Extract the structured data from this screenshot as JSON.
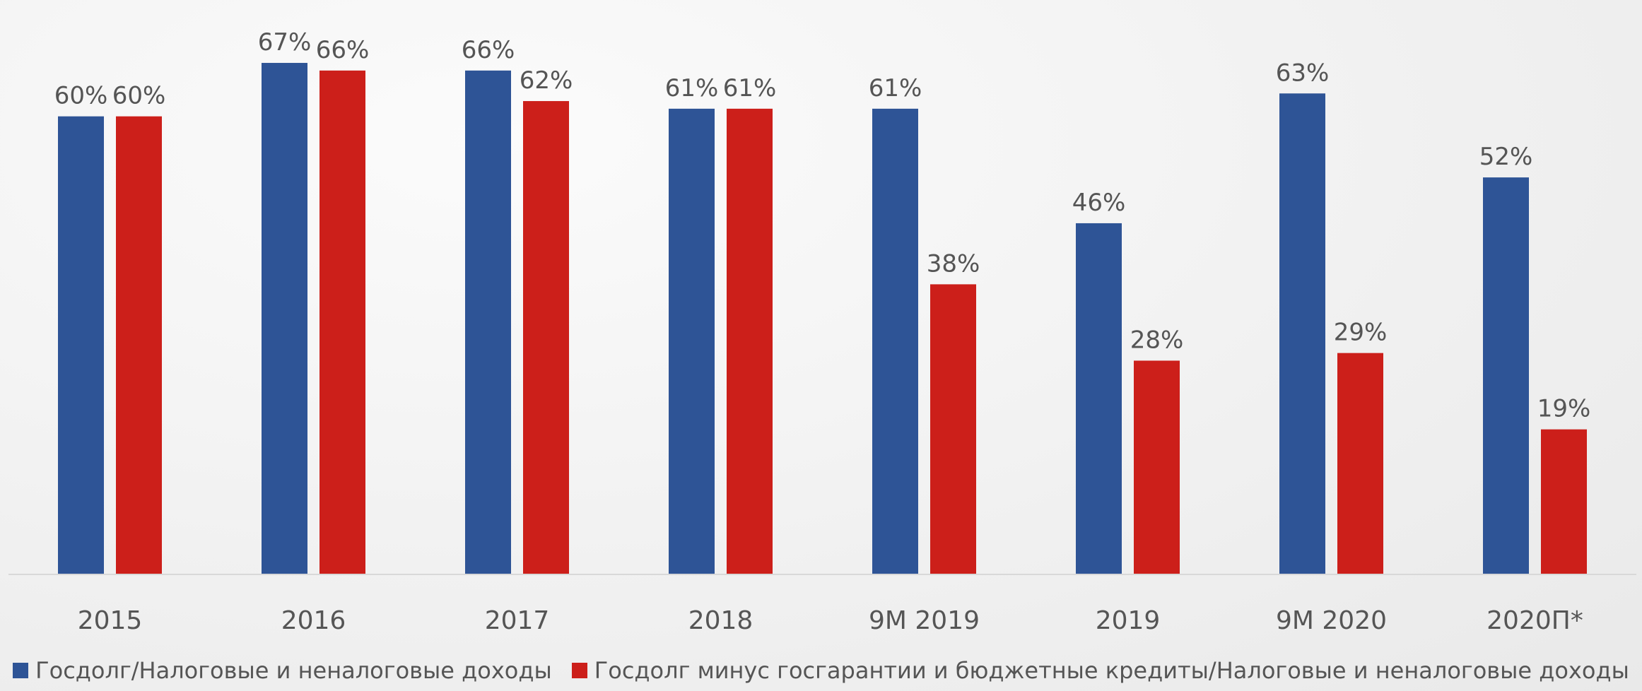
{
  "chart_data": {
    "type": "bar",
    "categories": [
      "2015",
      "2016",
      "2017",
      "2018",
      "9М 2019",
      "2019",
      "9М 2020",
      "2020П*"
    ],
    "series": [
      {
        "name": "Госдолг/Налоговые и неналоговые доходы",
        "color": "#2e5496",
        "values": [
          60,
          67,
          66,
          61,
          61,
          46,
          63,
          52
        ],
        "labels": [
          "60%",
          "67%",
          "66%",
          "61%",
          "61%",
          "46%",
          "63%",
          "52%"
        ]
      },
      {
        "name": "Госдолг минус госгарантии и бюджетные кредиты/Налоговые и неналоговые доходы",
        "color": "#cc1f1a",
        "values": [
          60,
          66,
          62,
          61,
          38,
          28,
          29,
          19
        ],
        "labels": [
          "60%",
          "66%",
          "62%",
          "61%",
          "38%",
          "28%",
          "29%",
          "19%"
        ]
      }
    ],
    "ylim": [
      0,
      72
    ],
    "grid": false,
    "legend_position": "bottom"
  }
}
